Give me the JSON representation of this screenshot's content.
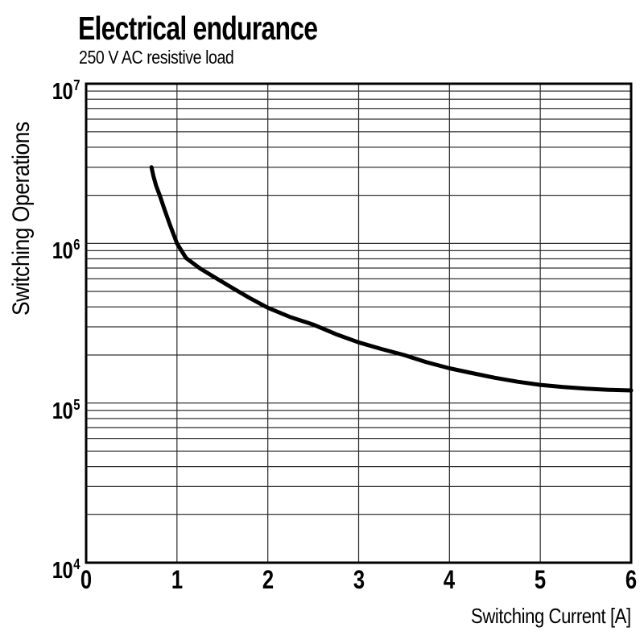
{
  "header": {
    "title": "Electrical endurance",
    "subtitle": "250 V AC resistive load"
  },
  "chart_data": {
    "type": "line",
    "title": "Electrical endurance",
    "subtitle": "250 V AC resistive load",
    "xlabel": "Switching Current [A]",
    "ylabel": "Switching Operations",
    "x_axis": {
      "min": 0,
      "max": 6,
      "tick_labels": [
        "0",
        "1",
        "2",
        "3",
        "4",
        "5",
        "6"
      ],
      "gridlines": "vertical line at every integer"
    },
    "y_axis": {
      "scale": "log",
      "min_exp": 4,
      "max_exp": 7,
      "tick_labels": [
        {
          "base": "10",
          "exp": "7"
        },
        {
          "base": "10",
          "exp": "6"
        },
        {
          "base": "10",
          "exp": "5"
        },
        {
          "base": "10",
          "exp": "4"
        }
      ],
      "gridlines": "minor log gridlines 2-9 in each decade plus decade lines"
    },
    "grid": true,
    "legend": false,
    "series": [
      {
        "name": "electrical-endurance-curve",
        "color": "#000000",
        "points": [
          [
            0.72,
            3000000
          ],
          [
            0.74,
            2650000
          ],
          [
            0.77,
            2300000
          ],
          [
            0.81,
            2000000
          ],
          [
            0.86,
            1650000
          ],
          [
            0.92,
            1320000
          ],
          [
            1.0,
            1000000
          ],
          [
            1.1,
            810000
          ],
          [
            1.25,
            700000
          ],
          [
            1.4,
            620000
          ],
          [
            1.6,
            530000
          ],
          [
            1.8,
            455000
          ],
          [
            2.0,
            395000
          ],
          [
            2.25,
            345000
          ],
          [
            2.5,
            310000
          ],
          [
            2.75,
            270000
          ],
          [
            3.0,
            240000
          ],
          [
            3.25,
            218000
          ],
          [
            3.5,
            200000
          ],
          [
            3.75,
            180000
          ],
          [
            4.0,
            165000
          ],
          [
            4.25,
            154000
          ],
          [
            4.5,
            144000
          ],
          [
            4.75,
            136000
          ],
          [
            5.0,
            130000
          ],
          [
            5.25,
            126000
          ],
          [
            5.5,
            123000
          ],
          [
            5.75,
            121000
          ],
          [
            6.0,
            120000
          ]
        ]
      }
    ]
  },
  "colors": {
    "background": "#ffffff",
    "text": "#000000",
    "grid": "#303030",
    "frame": "#000000",
    "curve": "#000000"
  }
}
